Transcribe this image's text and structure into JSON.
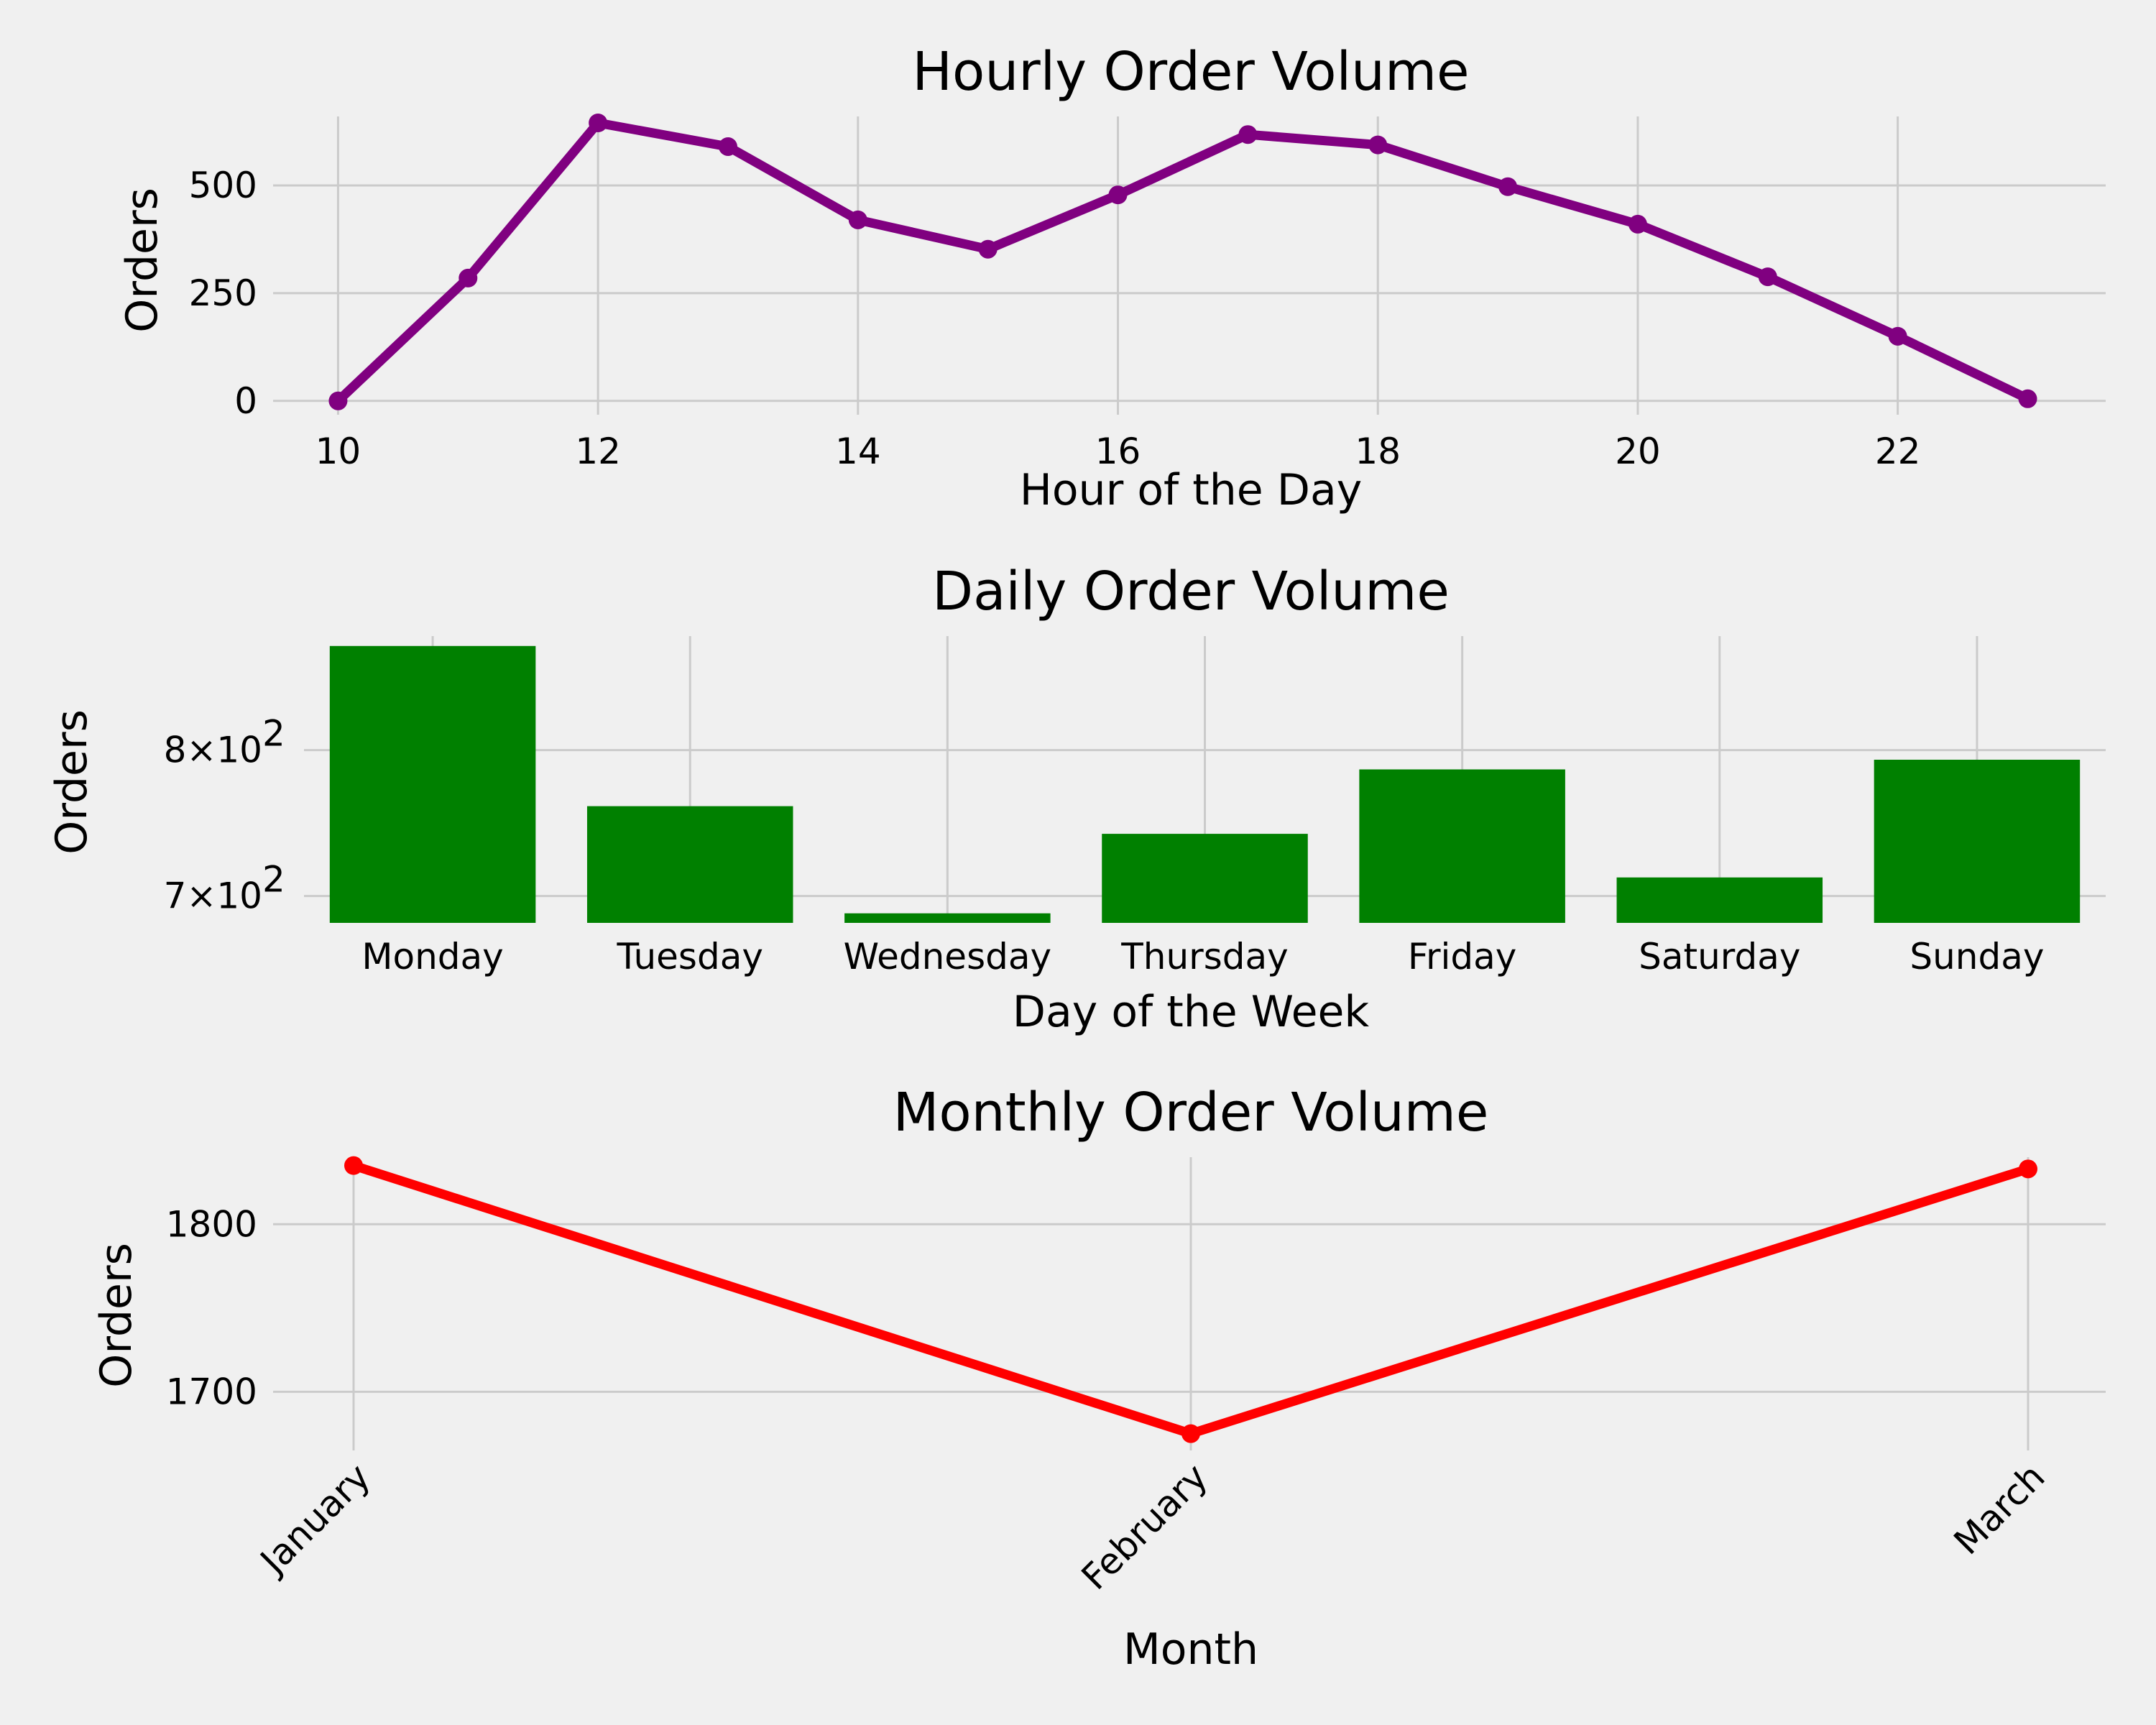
{
  "chart_data": [
    {
      "type": "line",
      "title": "Hourly Order Volume",
      "xlabel": "Hour of the Day",
      "ylabel": "Orders",
      "x": [
        10,
        11,
        12,
        13,
        14,
        15,
        16,
        17,
        18,
        19,
        20,
        21,
        22,
        23
      ],
      "values": [
        0,
        285,
        645,
        590,
        420,
        352,
        478,
        618,
        594,
        497,
        410,
        288,
        150,
        5
      ],
      "xticks": [
        "10",
        "12",
        "14",
        "16",
        "18",
        "20",
        "22"
      ],
      "yticks": [
        "0",
        "250",
        "500"
      ],
      "xlim": [
        9.5,
        23.6
      ],
      "ylim": [
        -32,
        660
      ],
      "color": "#800080",
      "grid": true
    },
    {
      "type": "bar",
      "title": "Daily Order Volume",
      "xlabel": "Day of the Week",
      "ylabel": "Orders",
      "categories": [
        "Monday",
        "Tuesday",
        "Wednesday",
        "Thursday",
        "Friday",
        "Saturday",
        "Sunday"
      ],
      "values": [
        880,
        760,
        689,
        741,
        786,
        712,
        793
      ],
      "scale": "log",
      "ytick_values": [
        700,
        800
      ],
      "ylim": [
        683,
        888
      ],
      "color": "#008000",
      "grid": true
    },
    {
      "type": "line",
      "title": "Monthly Order Volume",
      "xlabel": "Month",
      "ylabel": "Orders",
      "categories": [
        "January",
        "February",
        "March"
      ],
      "values": [
        1835,
        1675,
        1833
      ],
      "yticks": [
        "1700",
        "1800"
      ],
      "ylim": [
        1665,
        1840
      ],
      "color": "#ff0000",
      "grid": true
    }
  ]
}
